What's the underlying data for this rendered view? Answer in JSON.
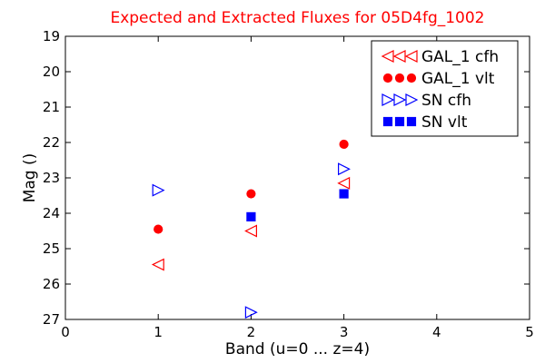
{
  "chart_data": {
    "type": "scatter",
    "title": "Expected and Extracted Fluxes for 05D4fg_1002",
    "xlabel": "Band (u=0 ... z=4)",
    "ylabel": "Mag ()",
    "xlim": [
      0,
      5
    ],
    "ylim": [
      27,
      19
    ],
    "y_inverted": true,
    "x_ticks": [
      "0",
      "1",
      "2",
      "3",
      "4",
      "5"
    ],
    "y_ticks": [
      "19",
      "20",
      "21",
      "22",
      "23",
      "24",
      "25",
      "26",
      "27"
    ],
    "grid": false,
    "legend_position": "top-right",
    "series": [
      {
        "name": "GAL_1 cfh",
        "marker": "triangle-left",
        "filled": false,
        "color": "#ff0000",
        "points": [
          {
            "x": 1,
            "y": 25.45
          },
          {
            "x": 2,
            "y": 24.5
          },
          {
            "x": 3,
            "y": 23.15
          }
        ]
      },
      {
        "name": "GAL_1 vlt",
        "marker": "circle",
        "filled": true,
        "color": "#ff0000",
        "points": [
          {
            "x": 1,
            "y": 24.45
          },
          {
            "x": 2,
            "y": 23.45
          },
          {
            "x": 3,
            "y": 22.05
          }
        ]
      },
      {
        "name": "SN cfh",
        "marker": "triangle-right",
        "filled": false,
        "color": "#0000ff",
        "points": [
          {
            "x": 1,
            "y": 23.35
          },
          {
            "x": 2,
            "y": 26.8
          },
          {
            "x": 3,
            "y": 22.75
          }
        ]
      },
      {
        "name": "SN vlt",
        "marker": "square",
        "filled": true,
        "color": "#0000ff",
        "points": [
          {
            "x": 2,
            "y": 24.1
          },
          {
            "x": 3,
            "y": 23.45
          }
        ]
      }
    ]
  }
}
